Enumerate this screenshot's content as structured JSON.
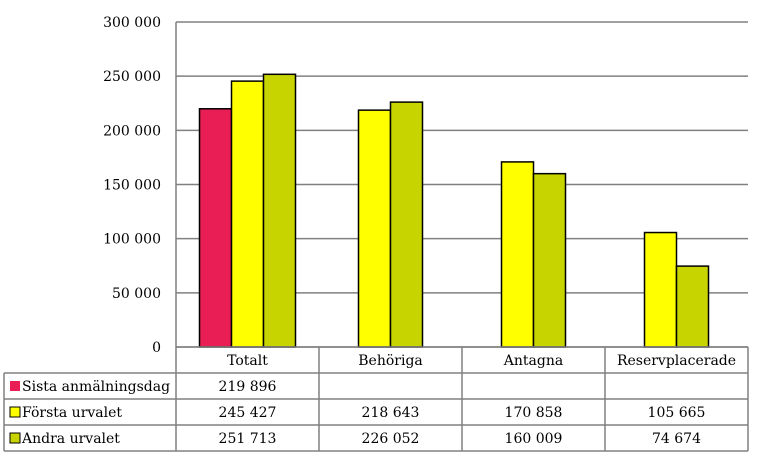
{
  "chart_data": {
    "type": "bar",
    "categories": [
      "Totalt",
      "Behöriga",
      "Antagna",
      "Reservplacerade"
    ],
    "series": [
      {
        "name": "Sista anmälningsdag",
        "color": "#e91e55",
        "values": [
          219896,
          null,
          null,
          null
        ],
        "labels": [
          "219 896",
          "",
          "",
          ""
        ]
      },
      {
        "name": "Första urvalet",
        "color": "#ffff00",
        "values": [
          245427,
          218643,
          170858,
          105665
        ],
        "labels": [
          "245 427",
          "218 643",
          "170 858",
          "105 665"
        ]
      },
      {
        "name": "Andra urvalet",
        "color": "#c8d400",
        "values": [
          251713,
          226052,
          160009,
          74674
        ],
        "labels": [
          "251 713",
          "226 052",
          "160 009",
          "74 674"
        ]
      }
    ],
    "yticks": [
      {
        "value": 0,
        "label": "0"
      },
      {
        "value": 50000,
        "label": "50 000"
      },
      {
        "value": 100000,
        "label": "100 000"
      },
      {
        "value": 150000,
        "label": "150 000"
      },
      {
        "value": 200000,
        "label": "200 000"
      },
      {
        "value": 250000,
        "label": "250 000"
      },
      {
        "value": 300000,
        "label": "300 000"
      }
    ],
    "ylim": [
      0,
      300000
    ],
    "grid": true,
    "legend": "data-table",
    "title": "",
    "xlabel": "",
    "ylabel": ""
  }
}
